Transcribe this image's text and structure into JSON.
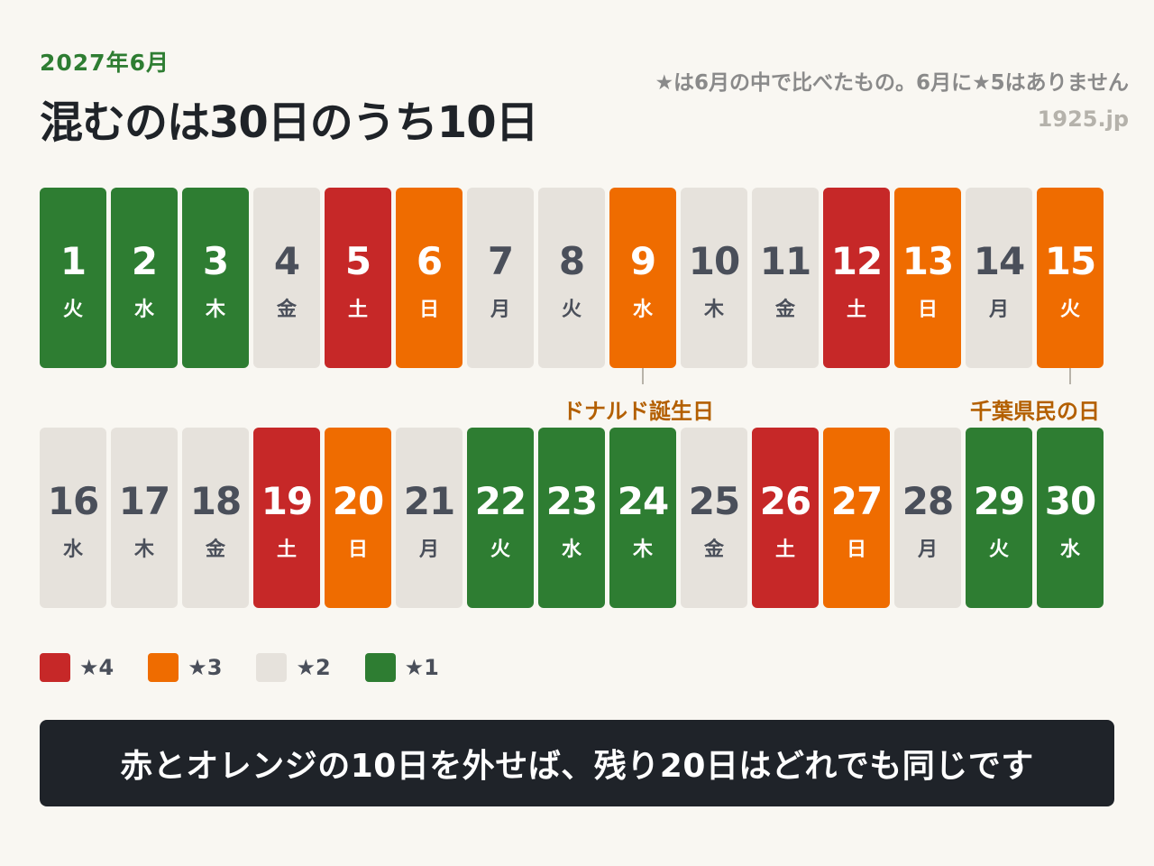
{
  "header": {
    "subtitle": "2027年6月",
    "title": "混むのは30日のうち10日",
    "note": "★は6月の中で比べたもの。6月に★5はありません",
    "credit": "1925.jp"
  },
  "colors": {
    "lv4": "#c62828",
    "lv3": "#ef6c00",
    "lv2": "#e6e2dc",
    "lv1": "#2e7d32",
    "banner": "#1f2329",
    "annotation": "#b35f00"
  },
  "calendar": {
    "row1": [
      {
        "day": "1",
        "dow": "火",
        "stars": 1
      },
      {
        "day": "2",
        "dow": "水",
        "stars": 1
      },
      {
        "day": "3",
        "dow": "木",
        "stars": 1
      },
      {
        "day": "4",
        "dow": "金",
        "stars": 2
      },
      {
        "day": "5",
        "dow": "土",
        "stars": 4
      },
      {
        "day": "6",
        "dow": "日",
        "stars": 3
      },
      {
        "day": "7",
        "dow": "月",
        "stars": 2
      },
      {
        "day": "8",
        "dow": "火",
        "stars": 2
      },
      {
        "day": "9",
        "dow": "水",
        "stars": 3
      },
      {
        "day": "10",
        "dow": "木",
        "stars": 2
      },
      {
        "day": "11",
        "dow": "金",
        "stars": 2
      },
      {
        "day": "12",
        "dow": "土",
        "stars": 4
      },
      {
        "day": "13",
        "dow": "日",
        "stars": 3
      },
      {
        "day": "14",
        "dow": "月",
        "stars": 2
      },
      {
        "day": "15",
        "dow": "火",
        "stars": 3
      }
    ],
    "row2": [
      {
        "day": "16",
        "dow": "水",
        "stars": 2
      },
      {
        "day": "17",
        "dow": "木",
        "stars": 2
      },
      {
        "day": "18",
        "dow": "金",
        "stars": 2
      },
      {
        "day": "19",
        "dow": "土",
        "stars": 4
      },
      {
        "day": "20",
        "dow": "日",
        "stars": 3
      },
      {
        "day": "21",
        "dow": "月",
        "stars": 2
      },
      {
        "day": "22",
        "dow": "火",
        "stars": 1
      },
      {
        "day": "23",
        "dow": "水",
        "stars": 1
      },
      {
        "day": "24",
        "dow": "木",
        "stars": 1
      },
      {
        "day": "25",
        "dow": "金",
        "stars": 2
      },
      {
        "day": "26",
        "dow": "土",
        "stars": 4
      },
      {
        "day": "27",
        "dow": "日",
        "stars": 3
      },
      {
        "day": "28",
        "dow": "月",
        "stars": 2
      },
      {
        "day": "29",
        "dow": "火",
        "stars": 1
      },
      {
        "day": "30",
        "dow": "水",
        "stars": 1
      }
    ]
  },
  "annotations": [
    {
      "day": "9",
      "label": "ドナルド誕生日"
    },
    {
      "day": "15",
      "label": "千葉県民の日"
    }
  ],
  "legend": [
    {
      "label": "★4",
      "stars": 4
    },
    {
      "label": "★3",
      "stars": 3
    },
    {
      "label": "★2",
      "stars": 2
    },
    {
      "label": "★1",
      "stars": 1
    }
  ],
  "banner": {
    "text": "赤とオレンジの10日を外せば、残り20日はどれでも同じです"
  }
}
